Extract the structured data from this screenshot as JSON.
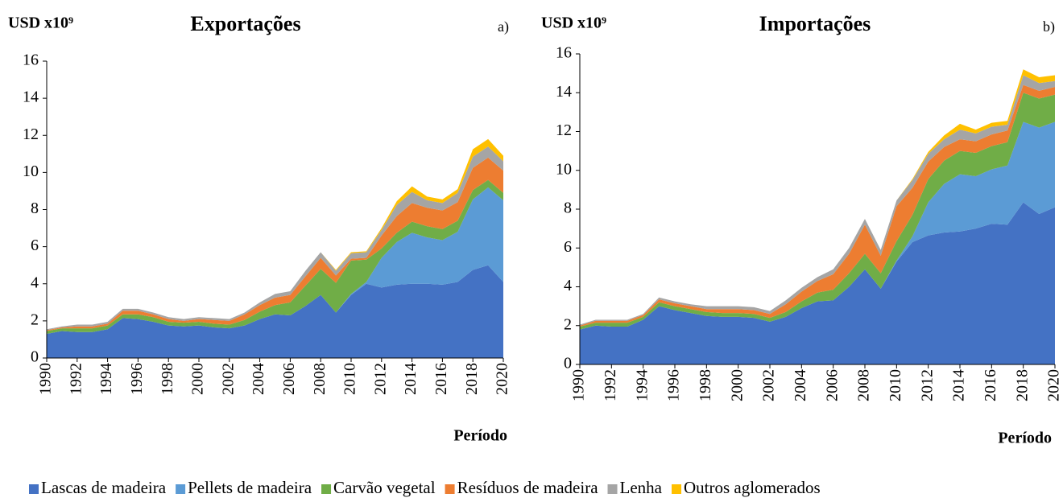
{
  "chart_data": [
    {
      "type": "area",
      "title": "Exportações",
      "y_label": "USD x10⁹",
      "x_label": "Período",
      "panel": "a)",
      "x": [
        1990,
        1991,
        1992,
        1993,
        1994,
        1995,
        1996,
        1997,
        1998,
        1999,
        2000,
        2001,
        2002,
        2003,
        2004,
        2005,
        2006,
        2007,
        2008,
        2009,
        2010,
        2011,
        2012,
        2013,
        2014,
        2015,
        2016,
        2017,
        2018,
        2019,
        2020
      ],
      "xlim": [
        1990,
        2020
      ],
      "xticks": [
        1990,
        1992,
        1994,
        1996,
        1998,
        2000,
        2002,
        2004,
        2006,
        2008,
        2010,
        2012,
        2014,
        2016,
        2018,
        2020
      ],
      "ylim": [
        0,
        16
      ],
      "yticks": [
        0,
        2,
        4,
        6,
        8,
        10,
        12,
        14,
        16
      ],
      "stacked": true,
      "series": [
        {
          "name": "Lascas de madeira",
          "color": "#4472c4",
          "values": [
            1.3,
            1.45,
            1.4,
            1.4,
            1.55,
            2.15,
            2.1,
            1.95,
            1.75,
            1.7,
            1.75,
            1.65,
            1.6,
            1.75,
            2.1,
            2.35,
            2.3,
            2.8,
            3.4,
            2.45,
            3.4,
            4.0,
            3.8,
            3.95,
            4.0,
            4.0,
            3.95,
            4.1,
            4.75,
            5.0,
            4.1
          ]
        },
        {
          "name": "Pellets de madeira",
          "color": "#5b9bd5",
          "values": [
            0,
            0,
            0,
            0,
            0,
            0,
            0,
            0,
            0,
            0,
            0,
            0,
            0,
            0,
            0,
            0,
            0,
            0,
            0,
            0,
            0.05,
            0.1,
            1.6,
            2.3,
            2.75,
            2.5,
            2.4,
            2.7,
            3.8,
            4.2,
            4.4
          ]
        },
        {
          "name": "Carvão vegetal",
          "color": "#70ad47",
          "values": [
            0.15,
            0.15,
            0.2,
            0.2,
            0.2,
            0.2,
            0.25,
            0.25,
            0.2,
            0.2,
            0.2,
            0.2,
            0.2,
            0.3,
            0.4,
            0.5,
            0.7,
            1.1,
            1.4,
            1.6,
            1.8,
            1.2,
            0.5,
            0.5,
            0.6,
            0.6,
            0.6,
            0.6,
            0.5,
            0.4,
            0.4
          ]
        },
        {
          "name": "Resíduos de madeira",
          "color": "#ed7d31",
          "values": [
            0.05,
            0.05,
            0.1,
            0.1,
            0.1,
            0.2,
            0.2,
            0.15,
            0.15,
            0.1,
            0.15,
            0.2,
            0.2,
            0.3,
            0.35,
            0.4,
            0.4,
            0.5,
            0.6,
            0.4,
            0.1,
            0.1,
            0.7,
            0.9,
            1.0,
            1.0,
            1.0,
            1.0,
            1.2,
            1.2,
            1.2
          ]
        },
        {
          "name": "Lenha",
          "color": "#a5a5a5",
          "values": [
            0.05,
            0.05,
            0.1,
            0.1,
            0.1,
            0.1,
            0.1,
            0.1,
            0.1,
            0.1,
            0.1,
            0.1,
            0.1,
            0.1,
            0.15,
            0.2,
            0.2,
            0.3,
            0.3,
            0.25,
            0.3,
            0.3,
            0.3,
            0.6,
            0.6,
            0.4,
            0.4,
            0.5,
            0.6,
            0.6,
            0.5
          ]
        },
        {
          "name": "Outros aglomerados",
          "color": "#ffc000",
          "values": [
            0,
            0,
            0,
            0,
            0,
            0,
            0,
            0,
            0,
            0,
            0,
            0,
            0,
            0,
            0,
            0,
            0,
            0,
            0,
            0.05,
            0.05,
            0.05,
            0.1,
            0.2,
            0.3,
            0.2,
            0.2,
            0.2,
            0.4,
            0.4,
            0.3
          ]
        }
      ]
    },
    {
      "type": "area",
      "title": "Importações",
      "y_label": "USD x10⁹",
      "x_label": "Período",
      "panel": "b)",
      "x": [
        1990,
        1991,
        1992,
        1993,
        1994,
        1995,
        1996,
        1997,
        1998,
        1999,
        2000,
        2001,
        2002,
        2003,
        2004,
        2005,
        2006,
        2007,
        2008,
        2009,
        2010,
        2011,
        2012,
        2013,
        2014,
        2015,
        2016,
        2017,
        2018,
        2019,
        2020
      ],
      "xlim": [
        1990,
        2020
      ],
      "xticks": [
        1990,
        1992,
        1994,
        1996,
        1998,
        2000,
        2002,
        2004,
        2006,
        2008,
        2010,
        2012,
        2014,
        2016,
        2018,
        2020
      ],
      "ylim": [
        0,
        16
      ],
      "yticks": [
        0,
        2,
        4,
        6,
        8,
        10,
        12,
        14,
        16
      ],
      "stacked": true,
      "series": [
        {
          "name": "Lascas de madeira",
          "color": "#4472c4",
          "values": [
            1.8,
            2.0,
            1.95,
            1.95,
            2.3,
            3.0,
            2.8,
            2.65,
            2.5,
            2.45,
            2.45,
            2.4,
            2.2,
            2.45,
            2.9,
            3.25,
            3.3,
            4.0,
            4.9,
            3.9,
            5.3,
            6.3,
            6.65,
            6.8,
            6.85,
            7.0,
            7.25,
            7.2,
            8.35,
            7.75,
            8.1
          ]
        },
        {
          "name": "Pellets de madeira",
          "color": "#5b9bd5",
          "values": [
            0,
            0,
            0,
            0,
            0,
            0,
            0,
            0,
            0,
            0,
            0,
            0,
            0,
            0,
            0,
            0,
            0,
            0,
            0,
            0,
            0.05,
            0.3,
            1.7,
            2.5,
            2.95,
            2.7,
            2.8,
            3.05,
            4.15,
            4.45,
            4.4
          ]
        },
        {
          "name": "Carvão vegetal",
          "color": "#70ad47",
          "values": [
            0.15,
            0.15,
            0.2,
            0.2,
            0.15,
            0.2,
            0.2,
            0.2,
            0.2,
            0.2,
            0.2,
            0.2,
            0.2,
            0.25,
            0.35,
            0.45,
            0.55,
            0.7,
            0.8,
            0.8,
            1.0,
            1.1,
            1.2,
            1.2,
            1.2,
            1.2,
            1.2,
            1.2,
            1.5,
            1.5,
            1.4
          ]
        },
        {
          "name": "Resíduos de madeira",
          "color": "#ed7d31",
          "values": [
            0.05,
            0.1,
            0.1,
            0.1,
            0.1,
            0.15,
            0.15,
            0.15,
            0.15,
            0.2,
            0.2,
            0.2,
            0.2,
            0.4,
            0.5,
            0.6,
            0.8,
            1.0,
            1.5,
            0.9,
            1.8,
            1.4,
            0.9,
            0.7,
            0.6,
            0.6,
            0.6,
            0.6,
            0.4,
            0.4,
            0.4
          ]
        },
        {
          "name": "Lenha",
          "color": "#a5a5a5",
          "values": [
            0.05,
            0.05,
            0.05,
            0.05,
            0.05,
            0.1,
            0.1,
            0.1,
            0.15,
            0.15,
            0.15,
            0.15,
            0.15,
            0.2,
            0.2,
            0.2,
            0.25,
            0.3,
            0.3,
            0.3,
            0.3,
            0.4,
            0.4,
            0.4,
            0.5,
            0.4,
            0.4,
            0.3,
            0.5,
            0.4,
            0.3
          ]
        },
        {
          "name": "Outros aglomerados",
          "color": "#ffc000",
          "values": [
            0,
            0,
            0,
            0,
            0,
            0,
            0,
            0,
            0,
            0,
            0,
            0,
            0,
            0,
            0,
            0,
            0,
            0,
            0,
            0,
            0,
            0.05,
            0.1,
            0.2,
            0.3,
            0.2,
            0.2,
            0.2,
            0.3,
            0.3,
            0.3
          ]
        }
      ]
    }
  ]
}
